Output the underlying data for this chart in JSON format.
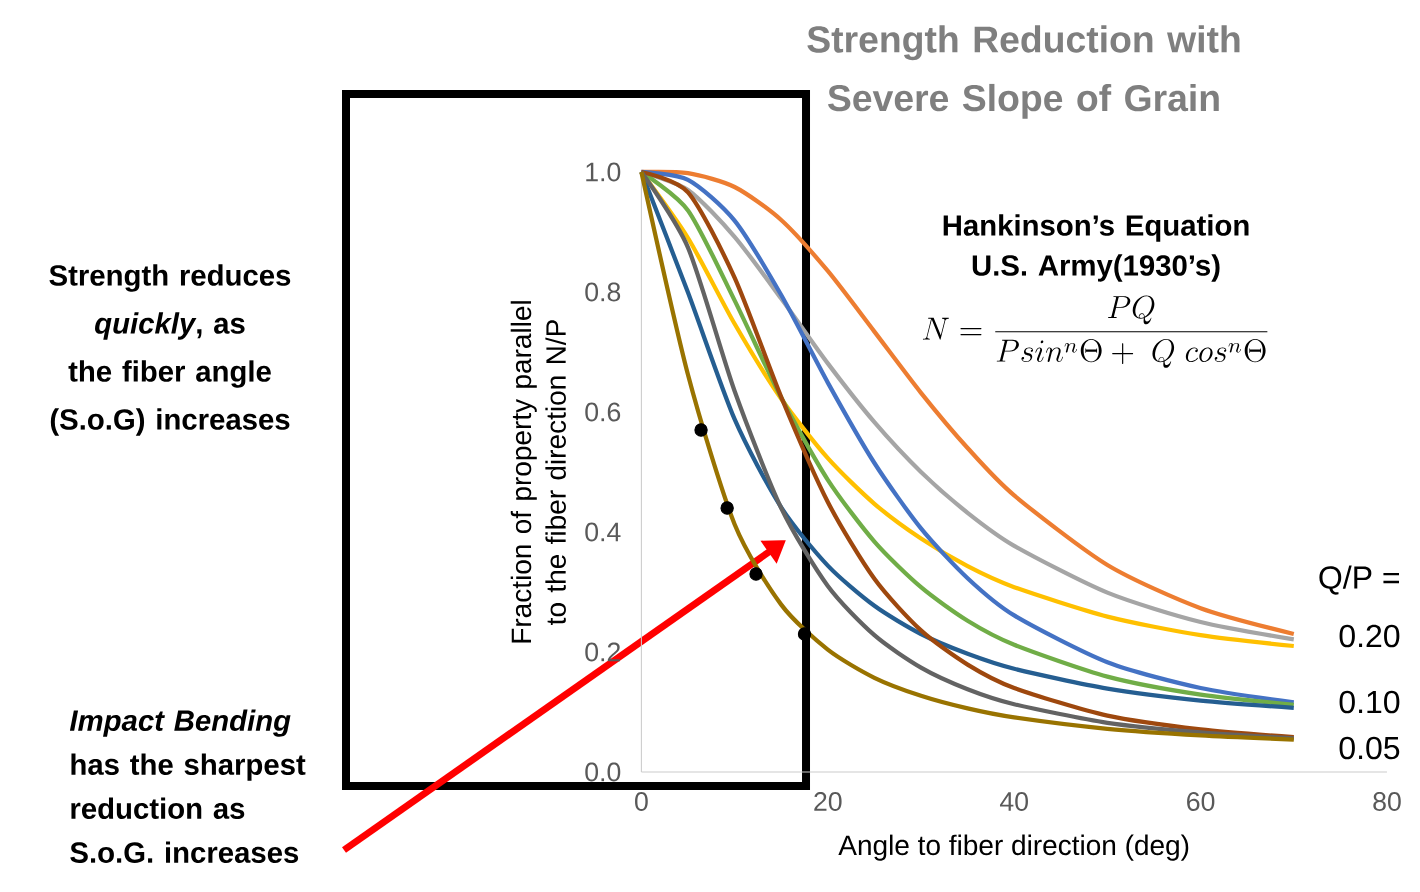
{
  "chart_data": {
    "type": "line",
    "title": "Strength Reduction with Severe Slope of Grain",
    "xlabel": "Angle to fiber direction (deg)",
    "ylabel": "Fraction of property parallel to the fiber direction N/P",
    "xlim": [
      0,
      80
    ],
    "ylim": [
      0,
      1
    ],
    "xticks": [
      0,
      20,
      40,
      60,
      80
    ],
    "yticks": [
      {
        "value": 0,
        "label": "0.0"
      },
      {
        "value": 0.2,
        "label": "0.2"
      },
      {
        "value": 0.4,
        "label": "0.4"
      },
      {
        "value": 0.6,
        "label": "0.6"
      },
      {
        "value": 0.8,
        "label": "0.8"
      },
      {
        "value": 1,
        "label": "1.0"
      }
    ],
    "x": [
      0,
      5,
      10,
      15,
      20,
      25,
      30,
      35,
      40,
      50,
      60,
      70
    ],
    "series": [
      {
        "color": "#ed7d31",
        "values": [
          1,
          0.998,
          0.975,
          0.92,
          0.835,
          0.734,
          0.632,
          0.54,
          0.461,
          0.345,
          0.273,
          0.23
        ]
      },
      {
        "color": "#a5a5a5",
        "values": [
          1,
          0.97,
          0.892,
          0.789,
          0.681,
          0.583,
          0.5,
          0.432,
          0.377,
          0.299,
          0.25,
          0.221
        ]
      },
      {
        "color": "#ffc000",
        "values": [
          1,
          0.89,
          0.747,
          0.622,
          0.523,
          0.447,
          0.389,
          0.343,
          0.308,
          0.259,
          0.228,
          0.21
        ]
      },
      {
        "color": "#4472c4",
        "values": [
          1,
          0.987,
          0.919,
          0.795,
          0.649,
          0.515,
          0.406,
          0.323,
          0.261,
          0.183,
          0.14,
          0.116
        ]
      },
      {
        "color": "#70ad47",
        "values": [
          1,
          0.936,
          0.786,
          0.624,
          0.487,
          0.384,
          0.308,
          0.252,
          0.212,
          0.159,
          0.129,
          0.112
        ]
      },
      {
        "color": "#255e91",
        "values": [
          1,
          0.799,
          0.588,
          0.441,
          0.344,
          0.277,
          0.23,
          0.197,
          0.172,
          0.139,
          0.119,
          0.107
        ]
      },
      {
        "color": "#9e480e",
        "values": [
          1,
          0.966,
          0.824,
          0.625,
          0.45,
          0.322,
          0.236,
          0.179,
          0.14,
          0.094,
          0.071,
          0.058
        ]
      },
      {
        "color": "#636363",
        "values": [
          1,
          0.874,
          0.635,
          0.44,
          0.31,
          0.228,
          0.174,
          0.138,
          0.113,
          0.082,
          0.066,
          0.056
        ]
      },
      {
        "color": "#997300",
        "values": [
          1,
          0.662,
          0.413,
          0.279,
          0.204,
          0.157,
          0.127,
          0.106,
          0.091,
          0.072,
          0.061,
          0.054
        ]
      },
      {
        "type": "scatter",
        "marker": "circle",
        "color": "#000000",
        "x": [
          6.4,
          9.2,
          12.3,
          17.5
        ],
        "values": [
          0.57,
          0.44,
          0.33,
          0.23
        ]
      }
    ],
    "annotations": [
      "Hankinson’s Equation U.S. Army(1930’s)",
      "N = \\frac{PQ}{Psin^{n}\\Theta +\\ Q\\ cos^{n}\\Theta}",
      "Q/P =",
      "Strength reduces *quickly*, as the fiber angle (S.o.G) increases",
      "*Impact Bending* has the sharpest reduction as S.o.G. increases",
      "0.20",
      "0.10",
      "0.05"
    ]
  }
}
